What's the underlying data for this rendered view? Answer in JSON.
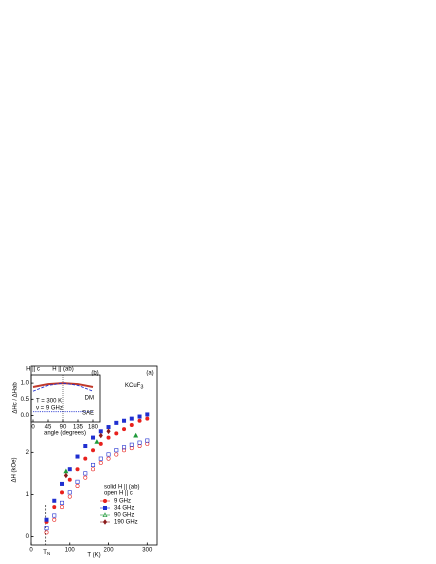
{
  "chart_data": [
    {
      "type": "scatter",
      "x_label": "T (K)",
      "y_label": "ΔH (kOe)",
      "panel_label": "(a)",
      "compound": "KCuF",
      "compound_sub": "3",
      "tn_main": "T",
      "tn_sub": "N",
      "tn_line": 38,
      "legend_title": [
        "solid H || (ab)",
        "open H || c"
      ],
      "xlim": [
        0,
        325
      ],
      "ylim": [
        -0.2,
        4.05
      ],
      "xticks": [
        0,
        100,
        200,
        300
      ],
      "yticks": [
        0,
        1,
        2
      ],
      "series": [
        {
          "name": "9 GHz",
          "color": "#e8201c",
          "marker": "circle",
          "x": [
            40,
            60,
            80,
            100,
            120,
            140,
            160,
            180,
            200,
            220,
            240,
            260,
            280,
            300
          ],
          "values": [
            0.35,
            0.7,
            1.05,
            1.35,
            1.6,
            1.85,
            2.05,
            2.2,
            2.35,
            2.45,
            2.55,
            2.65,
            2.75,
            2.8
          ],
          "values_open": [
            0.1,
            0.4,
            0.7,
            0.95,
            1.2,
            1.4,
            1.6,
            1.75,
            1.85,
            1.95,
            2.05,
            2.1,
            2.15,
            2.2
          ]
        },
        {
          "name": "34 GHz",
          "color": "#1f2fd0",
          "marker": "square",
          "x": [
            40,
            60,
            80,
            100,
            120,
            140,
            160,
            180,
            200,
            220,
            240,
            260,
            280,
            300
          ],
          "values": [
            0.4,
            0.85,
            1.25,
            1.6,
            1.9,
            2.15,
            2.35,
            2.5,
            2.6,
            2.7,
            2.75,
            2.8,
            2.85,
            2.9
          ],
          "values_open": [
            0.2,
            0.5,
            0.8,
            1.05,
            1.3,
            1.5,
            1.7,
            1.85,
            1.95,
            2.05,
            2.12,
            2.18,
            2.23,
            2.28
          ]
        },
        {
          "name": "90 GHz",
          "color": "#1f9a3a",
          "marker": "triangle",
          "x": [
            90,
            170,
            270
          ],
          "values": [
            1.55,
            2.25,
            2.4
          ]
        },
        {
          "name": "190 GHz",
          "color": "#8b1a1a",
          "marker": "diamond",
          "x": [
            90,
            180,
            200
          ],
          "values": [
            1.45,
            2.4,
            2.5
          ]
        }
      ]
    },
    {
      "type": "line",
      "x_label": "angle (degrees)",
      "y_label": "ΔHc / ΔHab",
      "panel_label": "(b)",
      "top_labels": [
        "H || c",
        "H || (ab)"
      ],
      "notes": [
        "T = 300 K",
        "ν = 9 GHz"
      ],
      "xlim": [
        -6,
        201
      ],
      "ylim": [
        -0.2,
        1.25
      ],
      "xticks": [
        0,
        45,
        90,
        135,
        180
      ],
      "yticks": [
        {
          "value": 0,
          "label": "0.0"
        },
        {
          "value": 0.5,
          "label": "0.5"
        },
        {
          "value": 1,
          "label": "1.0"
        }
      ],
      "series": [
        {
          "color": "#c0392b",
          "style": "solid",
          "x": [
            0,
            45,
            90,
            135,
            180
          ],
          "values": [
            0.88,
            0.97,
            1.0,
            0.97,
            0.88
          ]
        },
        {
          "name": "DM",
          "color": "#1f2fd0",
          "style": "dashed",
          "x": [
            0,
            45,
            90,
            135,
            180
          ],
          "values": [
            0.75,
            0.93,
            1.0,
            0.93,
            0.75
          ]
        },
        {
          "name": "SAE",
          "color": "#1f2fd0",
          "style": "dotted",
          "x": [
            0,
            45,
            90,
            135,
            180
          ],
          "values": [
            0.12,
            0.12,
            0.12,
            0.12,
            0.12
          ]
        }
      ]
    }
  ]
}
